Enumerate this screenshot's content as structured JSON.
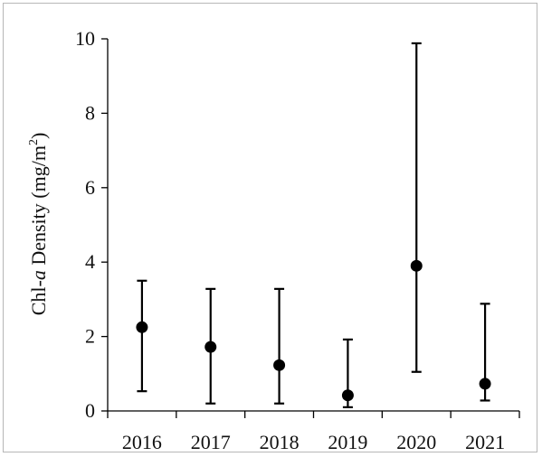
{
  "chart_data": {
    "type": "scatter",
    "title": "",
    "xlabel": "",
    "ylabel": {
      "prefix": "Chl-",
      "italic": "a",
      "suffix": " Density  (mg/m",
      "sup": "2",
      "close": ")"
    },
    "categories": [
      "2016",
      "2017",
      "2018",
      "2019",
      "2020",
      "2021"
    ],
    "values": [
      2.25,
      1.72,
      1.23,
      0.42,
      3.9,
      0.73
    ],
    "error_low": [
      0.53,
      0.2,
      0.2,
      0.1,
      1.05,
      0.28
    ],
    "error_high": [
      3.5,
      3.28,
      3.28,
      1.92,
      9.88,
      2.88
    ],
    "ylim": [
      0,
      10
    ],
    "yticks": [
      "0",
      "2",
      "4",
      "6",
      "8",
      "10"
    ],
    "grid": false,
    "marker_color": "#000000"
  }
}
